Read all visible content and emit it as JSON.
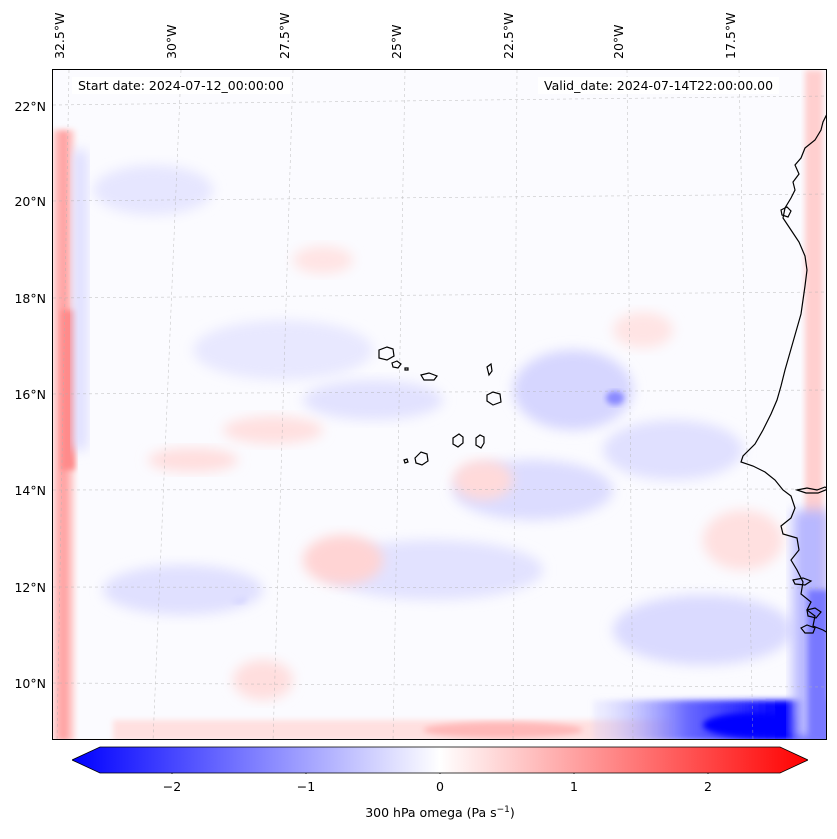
{
  "map": {
    "start_date": "Start date: 2024-07-12_00:00:00",
    "valid_date": "Valid_date: 2024-07-14T22:00:00.00",
    "lon_labels": [
      "32.5°W",
      "30°W",
      "27.5°W",
      "25°W",
      "22.5°W",
      "20°W",
      "17.5°W"
    ],
    "lat_labels": [
      "22°N",
      "20°N",
      "18°N",
      "16°N",
      "14°N",
      "12°N",
      "10°N"
    ]
  },
  "colorbar": {
    "tick_labels": [
      "−2",
      "−1",
      "0",
      "1",
      "2"
    ],
    "title": "300 hPa omega (Pa s",
    "title_sup": "−1",
    "title_end": ")",
    "min_color": "#0000ff",
    "mid_color": "#ffffff",
    "max_color": "#ff0000"
  }
}
